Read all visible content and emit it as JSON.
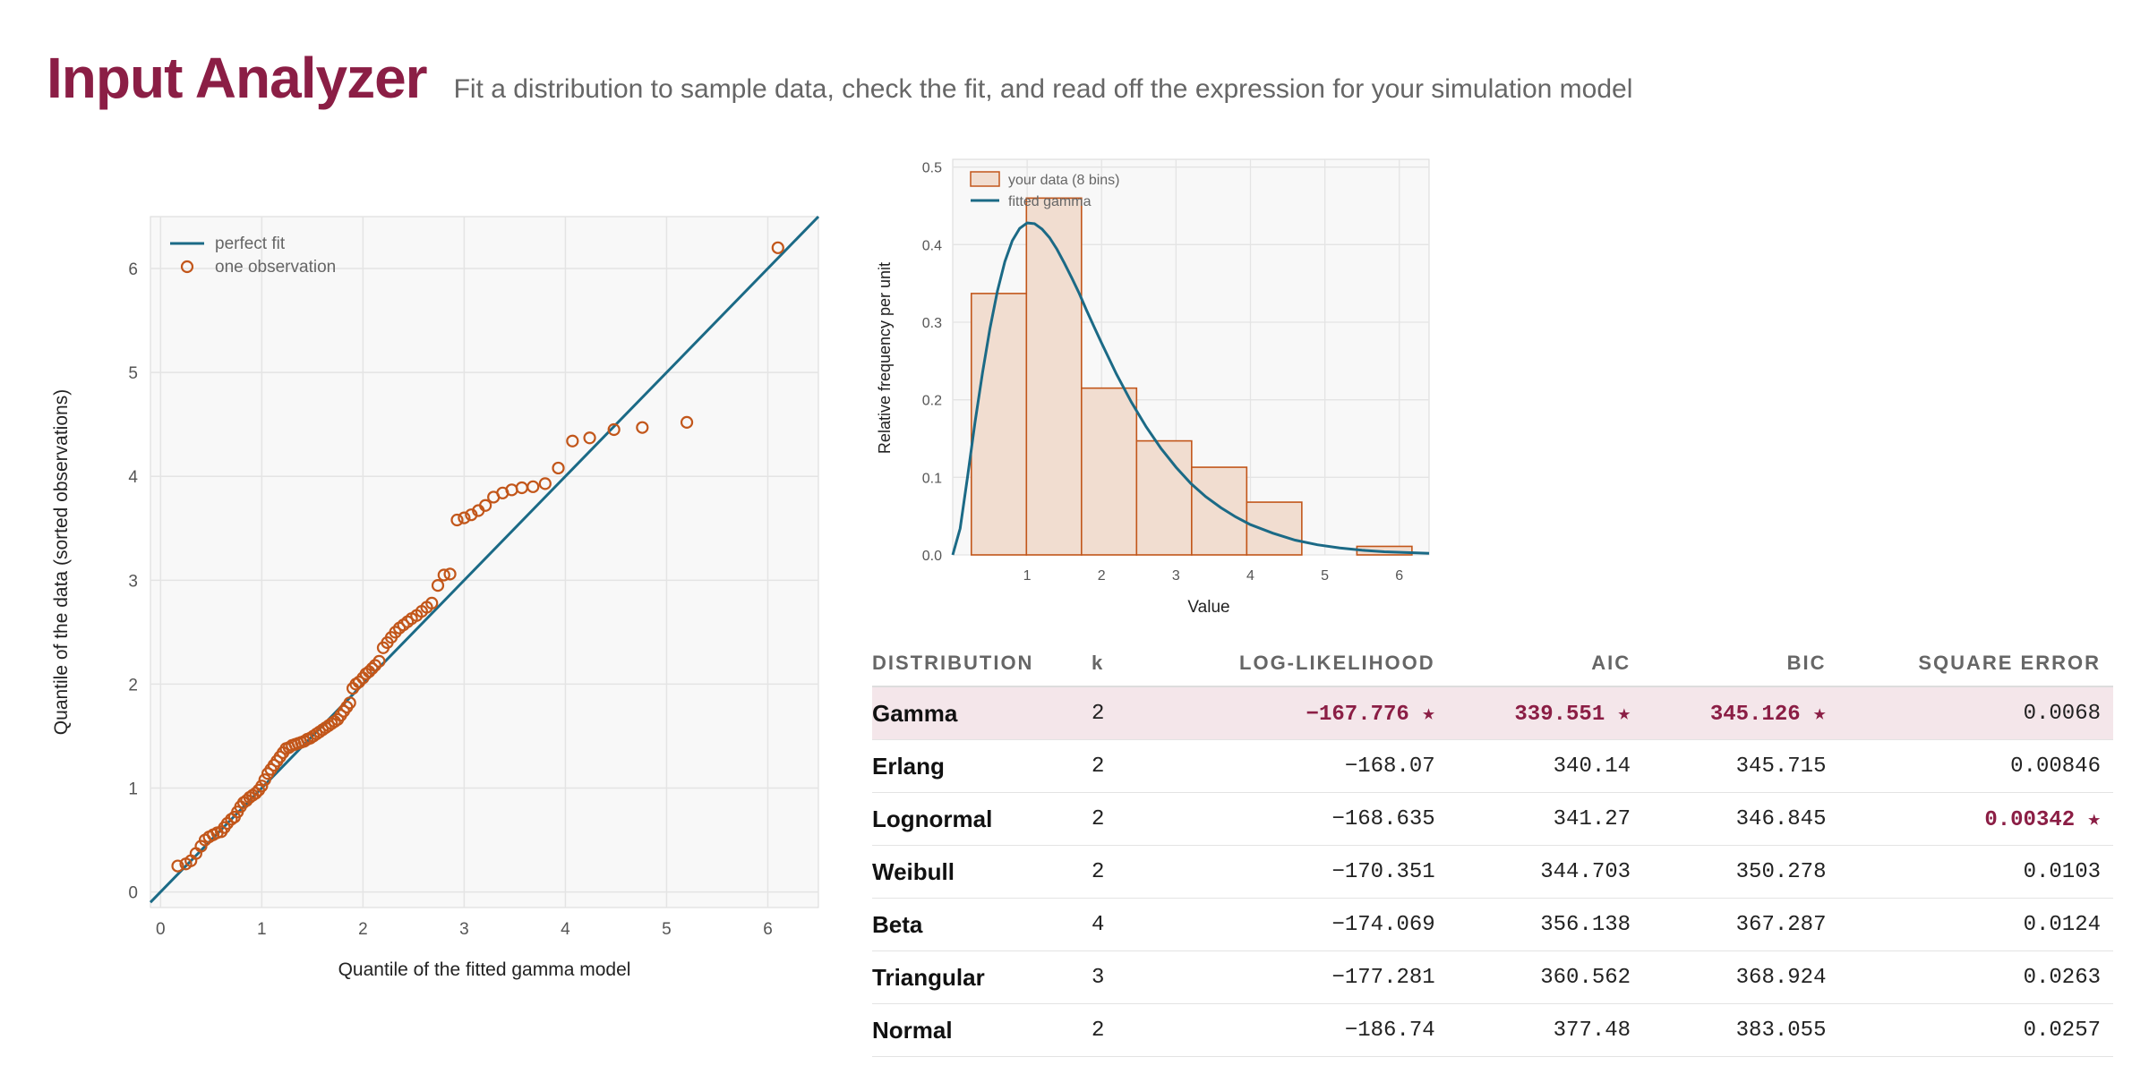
{
  "header": {
    "title": "Input Analyzer",
    "subtitle": "Fit a distribution to sample data, check the fit, and read off the expression for your simulation model"
  },
  "colors": {
    "accent": "#8b1e45",
    "model_line": "#1b6a86",
    "data": "#c2561a",
    "bar_fill": "#f1ddd0",
    "plot_bg": "#f8f8f8"
  },
  "chart_data": [
    {
      "type": "scatter",
      "xlabel": "Quantile of the fitted gamma model",
      "ylabel": "Quantile of the data (sorted observations)",
      "xlim": [
        -0.1,
        6.5
      ],
      "ylim": [
        -0.15,
        6.5
      ],
      "xticks": [
        0,
        1,
        2,
        3,
        4,
        5,
        6
      ],
      "yticks": [
        0,
        1,
        2,
        3,
        4,
        5,
        6
      ],
      "grid": true,
      "legend_position": "top-left",
      "series": [
        {
          "name": "perfect fit",
          "kind": "line",
          "x": [
            -0.1,
            6.5
          ],
          "y": [
            -0.1,
            6.5
          ]
        },
        {
          "name": "one observation",
          "kind": "points",
          "x": [
            0.17,
            0.25,
            0.3,
            0.35,
            0.4,
            0.44,
            0.48,
            0.52,
            0.56,
            0.6,
            0.63,
            0.66,
            0.7,
            0.73,
            0.76,
            0.79,
            0.82,
            0.85,
            0.88,
            0.91,
            0.94,
            0.97,
            1.0,
            1.03,
            1.06,
            1.09,
            1.12,
            1.15,
            1.18,
            1.21,
            1.24,
            1.27,
            1.3,
            1.33,
            1.36,
            1.39,
            1.42,
            1.45,
            1.48,
            1.51,
            1.54,
            1.57,
            1.6,
            1.63,
            1.66,
            1.69,
            1.72,
            1.75,
            1.78,
            1.81,
            1.84,
            1.87,
            1.9,
            1.93,
            1.96,
            2.0,
            2.03,
            2.06,
            2.09,
            2.12,
            2.16,
            2.2,
            2.24,
            2.28,
            2.32,
            2.36,
            2.4,
            2.44,
            2.48,
            2.53,
            2.58,
            2.63,
            2.68,
            2.74,
            2.8,
            2.86,
            2.93,
            3.0,
            3.07,
            3.14,
            3.21,
            3.29,
            3.38,
            3.47,
            3.57,
            3.68,
            3.8,
            3.93,
            4.07,
            4.24,
            4.48,
            4.76,
            5.2,
            6.1
          ],
          "y": [
            0.25,
            0.27,
            0.3,
            0.37,
            0.44,
            0.5,
            0.53,
            0.55,
            0.57,
            0.58,
            0.62,
            0.66,
            0.7,
            0.72,
            0.77,
            0.82,
            0.86,
            0.88,
            0.91,
            0.93,
            0.95,
            0.98,
            1.02,
            1.08,
            1.14,
            1.18,
            1.22,
            1.26,
            1.3,
            1.34,
            1.38,
            1.39,
            1.41,
            1.42,
            1.43,
            1.44,
            1.45,
            1.47,
            1.48,
            1.5,
            1.52,
            1.54,
            1.56,
            1.58,
            1.6,
            1.62,
            1.64,
            1.66,
            1.7,
            1.74,
            1.78,
            1.82,
            1.96,
            2.0,
            2.02,
            2.06,
            2.1,
            2.12,
            2.15,
            2.18,
            2.22,
            2.35,
            2.4,
            2.45,
            2.5,
            2.54,
            2.57,
            2.6,
            2.63,
            2.66,
            2.7,
            2.74,
            2.78,
            2.95,
            3.05,
            3.06,
            3.58,
            3.6,
            3.63,
            3.67,
            3.72,
            3.8,
            3.84,
            3.87,
            3.89,
            3.9,
            3.93,
            4.08,
            4.34,
            4.37,
            4.45,
            4.47,
            4.52,
            6.2
          ]
        }
      ]
    },
    {
      "type": "bar",
      "ylabel": "Relative frequency per unit",
      "xlabel": "Value",
      "xlim": [
        0.0,
        6.4
      ],
      "ylim": [
        0,
        0.51
      ],
      "xticks": [
        1,
        2,
        3,
        4,
        5,
        6
      ],
      "yticks": [
        0.0,
        0.1,
        0.2,
        0.3,
        0.4,
        0.5
      ],
      "grid": true,
      "legend_position": "top-left",
      "bins": {
        "edges": [
          0.25,
          0.99,
          1.73,
          2.47,
          3.21,
          3.95,
          4.69,
          5.43,
          6.17
        ],
        "values": [
          0.337,
          0.46,
          0.215,
          0.147,
          0.113,
          0.068,
          0.0,
          0.011
        ]
      },
      "series": [
        {
          "name": "your data (8 bins)",
          "kind": "histogram"
        },
        {
          "name": "fitted gamma",
          "kind": "line",
          "x": [
            0,
            0.1,
            0.2,
            0.3,
            0.4,
            0.5,
            0.6,
            0.7,
            0.8,
            0.9,
            1.0,
            1.1,
            1.2,
            1.3,
            1.4,
            1.5,
            1.6,
            1.7,
            1.8,
            1.9,
            2.0,
            2.2,
            2.4,
            2.6,
            2.8,
            3.0,
            3.2,
            3.4,
            3.6,
            3.8,
            4.0,
            4.3,
            4.6,
            4.9,
            5.2,
            5.5,
            5.8,
            6.1,
            6.4
          ],
          "y": [
            0,
            0.034,
            0.101,
            0.171,
            0.235,
            0.292,
            0.34,
            0.378,
            0.405,
            0.421,
            0.428,
            0.427,
            0.42,
            0.409,
            0.394,
            0.376,
            0.357,
            0.337,
            0.315,
            0.294,
            0.273,
            0.233,
            0.197,
            0.165,
            0.137,
            0.113,
            0.092,
            0.075,
            0.061,
            0.049,
            0.039,
            0.028,
            0.019,
            0.013,
            0.009,
            0.006,
            0.004,
            0.003,
            0.002
          ]
        }
      ]
    },
    {
      "type": "table",
      "columns": [
        "DISTRIBUTION",
        "k",
        "LOG-LIKELIHOOD",
        "AIC",
        "BIC",
        "SQUARE ERROR"
      ],
      "rows": [
        {
          "name": "Gamma",
          "k": "2",
          "loglik": "−167.776 ★",
          "aic": "339.551 ★",
          "bic": "345.126 ★",
          "sqerr": "0.0068"
        },
        {
          "name": "Erlang",
          "k": "2",
          "loglik": "−168.07",
          "aic": "340.14",
          "bic": "345.715",
          "sqerr": "0.00846"
        },
        {
          "name": "Lognormal",
          "k": "2",
          "loglik": "−168.635",
          "aic": "341.27",
          "bic": "346.845",
          "sqerr": "0.00342 ★"
        },
        {
          "name": "Weibull",
          "k": "2",
          "loglik": "−170.351",
          "aic": "344.703",
          "bic": "350.278",
          "sqerr": "0.0103"
        },
        {
          "name": "Beta",
          "k": "4",
          "loglik": "−174.069",
          "aic": "356.138",
          "bic": "367.287",
          "sqerr": "0.0124"
        },
        {
          "name": "Triangular",
          "k": "3",
          "loglik": "−177.281",
          "aic": "360.562",
          "bic": "368.924",
          "sqerr": "0.0263"
        },
        {
          "name": "Normal",
          "k": "2",
          "loglik": "−186.74",
          "aic": "377.48",
          "bic": "383.055",
          "sqerr": "0.0257"
        }
      ]
    }
  ]
}
